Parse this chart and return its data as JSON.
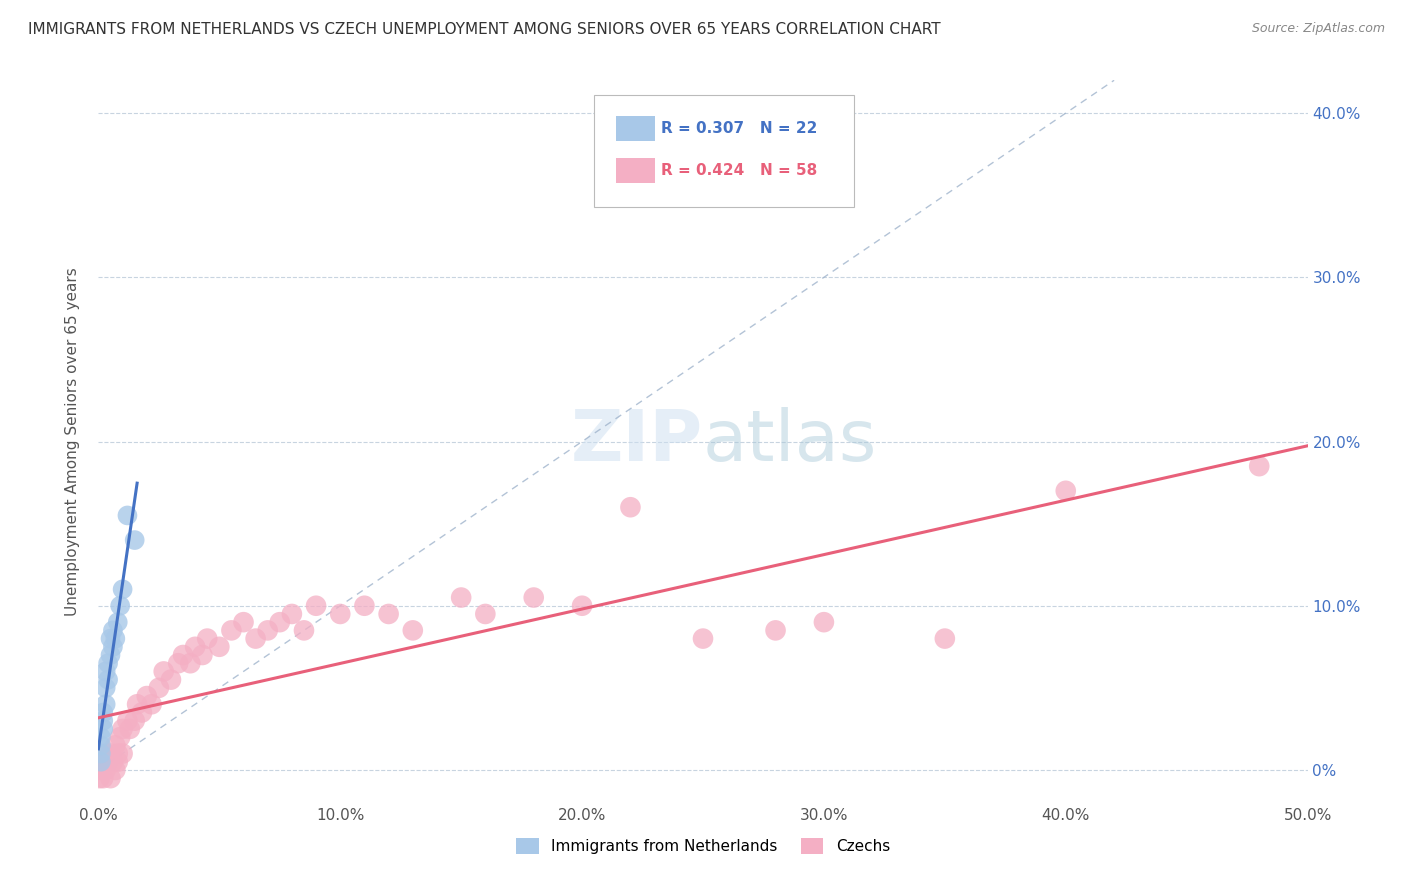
{
  "title": "IMMIGRANTS FROM NETHERLANDS VS CZECH UNEMPLOYMENT AMONG SENIORS OVER 65 YEARS CORRELATION CHART",
  "source": "Source: ZipAtlas.com",
  "ylabel": "Unemployment Among Seniors over 65 years",
  "right_yticks": [
    "0%",
    "10.0%",
    "20.0%",
    "30.0%",
    "40.0%"
  ],
  "right_ytick_vals": [
    0.0,
    0.1,
    0.2,
    0.3,
    0.4
  ],
  "legend_label_blue": "Immigrants from Netherlands",
  "legend_label_pink": "Czechs",
  "blue_color": "#a8c8e8",
  "pink_color": "#f4afc4",
  "blue_line_color": "#4472c4",
  "pink_line_color": "#e8607a",
  "blue_scatter_x": [
    0.001,
    0.001,
    0.001,
    0.001,
    0.002,
    0.002,
    0.002,
    0.003,
    0.003,
    0.003,
    0.004,
    0.004,
    0.005,
    0.005,
    0.006,
    0.006,
    0.007,
    0.008,
    0.009,
    0.01,
    0.012,
    0.015
  ],
  "blue_scatter_y": [
    0.005,
    0.01,
    0.015,
    0.02,
    0.025,
    0.03,
    0.035,
    0.04,
    0.05,
    0.06,
    0.055,
    0.065,
    0.07,
    0.08,
    0.075,
    0.085,
    0.08,
    0.09,
    0.1,
    0.11,
    0.155,
    0.14
  ],
  "pink_scatter_x": [
    0.0005,
    0.001,
    0.001,
    0.002,
    0.002,
    0.003,
    0.003,
    0.004,
    0.005,
    0.005,
    0.006,
    0.007,
    0.007,
    0.008,
    0.008,
    0.009,
    0.01,
    0.01,
    0.012,
    0.013,
    0.015,
    0.016,
    0.018,
    0.02,
    0.022,
    0.025,
    0.027,
    0.03,
    0.033,
    0.035,
    0.038,
    0.04,
    0.043,
    0.045,
    0.05,
    0.055,
    0.06,
    0.065,
    0.07,
    0.075,
    0.08,
    0.085,
    0.09,
    0.1,
    0.11,
    0.12,
    0.13,
    0.15,
    0.16,
    0.18,
    0.2,
    0.22,
    0.25,
    0.28,
    0.3,
    0.35,
    0.4,
    0.48
  ],
  "pink_scatter_y": [
    -0.005,
    0.0,
    0.005,
    -0.005,
    0.005,
    0.0,
    0.01,
    0.005,
    -0.005,
    0.01,
    0.005,
    0.0,
    0.015,
    0.005,
    0.01,
    0.02,
    0.01,
    0.025,
    0.03,
    0.025,
    0.03,
    0.04,
    0.035,
    0.045,
    0.04,
    0.05,
    0.06,
    0.055,
    0.065,
    0.07,
    0.065,
    0.075,
    0.07,
    0.08,
    0.075,
    0.085,
    0.09,
    0.08,
    0.085,
    0.09,
    0.095,
    0.085,
    0.1,
    0.095,
    0.1,
    0.095,
    0.085,
    0.105,
    0.095,
    0.105,
    0.1,
    0.16,
    0.08,
    0.085,
    0.09,
    0.08,
    0.17,
    0.185
  ],
  "xlim": [
    0.0,
    0.5
  ],
  "ylim": [
    -0.02,
    0.42
  ],
  "diag_color": "#a0b4cc"
}
